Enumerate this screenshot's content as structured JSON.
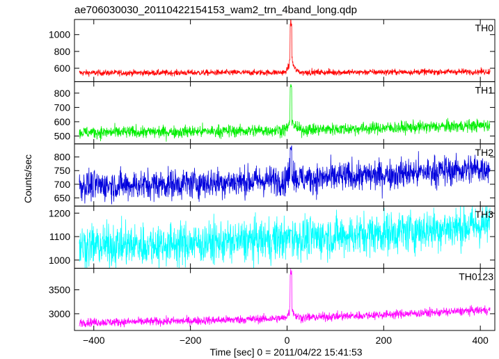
{
  "chart_data": {
    "type": "line",
    "title": "ae706030030_20110422154153_wam2_trn_4band_long.qdp",
    "xlabel": "Time [sec] 0 = 2011/04/22 15:41:53",
    "ylabel": "Counts/sec",
    "xlim": [
      -440,
      430
    ],
    "xticks": [
      -400,
      -200,
      0,
      200,
      400
    ],
    "tick_labels": [
      "−400",
      "−200",
      "0",
      "200",
      "400"
    ],
    "panels": [
      {
        "name": "TH0",
        "color": "#ff0000",
        "ylim": [
          440,
          1180
        ],
        "yticks": [
          600,
          800,
          1000
        ],
        "baseline_start": 545,
        "baseline_end": 560,
        "noise": 18,
        "peak_time": 8,
        "peak_value": 1180,
        "pre_peak_value": 800
      },
      {
        "name": "TH1",
        "color": "#00ee00",
        "ylim": [
          445,
          880
        ],
        "yticks": [
          500,
          600,
          700,
          800
        ],
        "baseline_start": 525,
        "baseline_end": 575,
        "noise": 22,
        "peak_time": 8,
        "peak_value": 870,
        "pre_peak_value": 660
      },
      {
        "name": "TH2",
        "color": "#0000dd",
        "ylim": [
          620,
          848
        ],
        "yticks": [
          650,
          700,
          750,
          800
        ],
        "baseline_start": 695,
        "baseline_end": 760,
        "noise": 28,
        "peak_time": 8,
        "peak_value": 845,
        "pre_peak_value": 770
      },
      {
        "name": "TH3",
        "color": "#00ffff",
        "ylim": [
          965,
          1230
        ],
        "yticks": [
          1000,
          1100,
          1200
        ],
        "baseline_start": 1060,
        "baseline_end": 1150,
        "noise": 45,
        "peak_time": 8,
        "peak_value": 1130,
        "pre_peak_value": 1100
      },
      {
        "name": "TH0123",
        "color": "#ff00ff",
        "ylim": [
          2650,
          3950
        ],
        "yticks": [
          3000,
          3500
        ],
        "baseline_start": 2820,
        "baseline_end": 3080,
        "noise": 45,
        "peak_time": 8,
        "peak_value": 3940,
        "pre_peak_value": 3250
      }
    ]
  }
}
